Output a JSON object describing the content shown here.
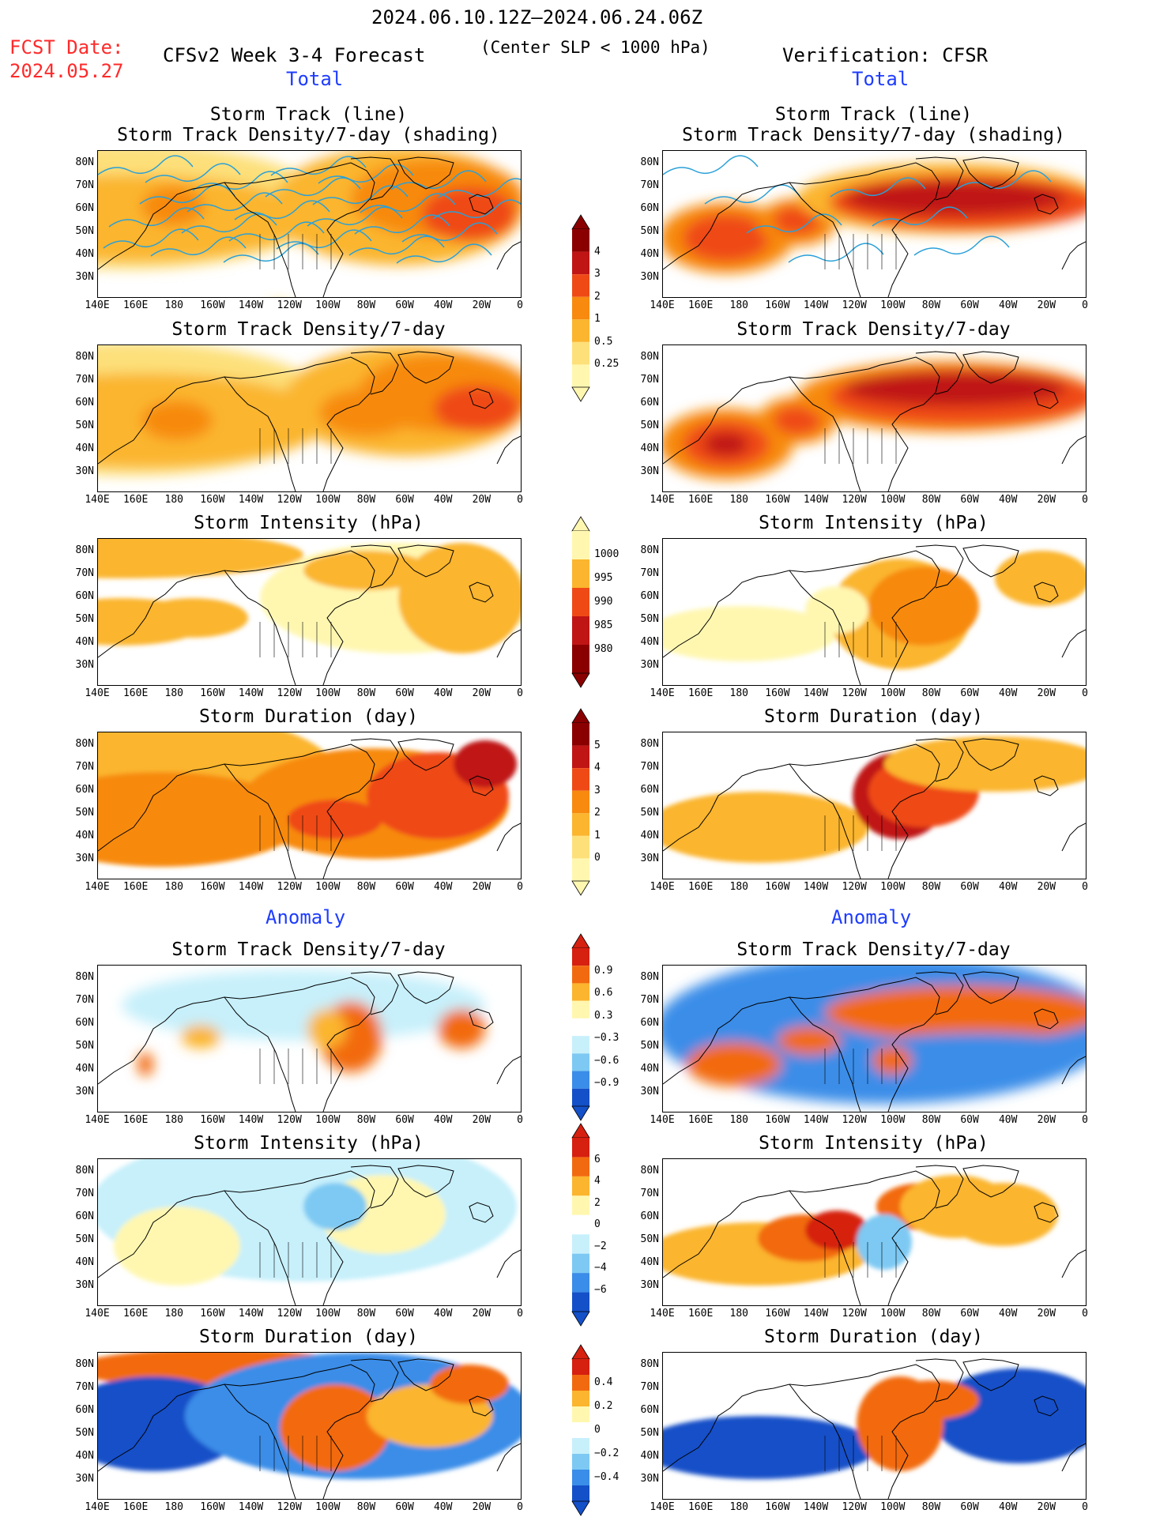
{
  "header": {
    "date_range": "2024.06.10.12Z–2024.06.24.06Z",
    "fcst_date_label": "FCST Date:",
    "fcst_date_value": "2024.05.27",
    "left_title": "CFSv2 Week 3-4 Forecast",
    "center_note": "(Center SLP < 1000 hPa)",
    "right_title": "Verification: CFSR"
  },
  "sections": {
    "total": "Total",
    "anomaly": "Anomaly"
  },
  "panel_titles": {
    "track_line_1": "Storm Track (line)",
    "track_line_2": "Storm Track Density/7-day (shading)",
    "density": "Storm Track Density/7-day",
    "intensity": "Storm Intensity (hPa)",
    "duration": "Storm Duration (day)"
  },
  "axes": {
    "lat_ticks": [
      "80N",
      "70N",
      "60N",
      "50N",
      "40N",
      "30N"
    ],
    "lon_ticks": [
      "140E",
      "160E",
      "180",
      "160W",
      "140W",
      "120W",
      "100W",
      "80W",
      "60W",
      "40W",
      "20W",
      "0"
    ]
  },
  "colorbars": {
    "density_total": [
      "4",
      "3",
      "2",
      "1",
      "0.5",
      "0.25"
    ],
    "intensity_total": [
      "1000",
      "995",
      "990",
      "985",
      "980"
    ],
    "duration_total": [
      "5",
      "4",
      "3",
      "2",
      "1",
      "0"
    ],
    "density_anom": [
      "0.9",
      "0.6",
      "0.3",
      "−0.3",
      "−0.6",
      "−0.9"
    ],
    "intensity_anom": [
      "6",
      "4",
      "2",
      "0",
      "−2",
      "−4",
      "−6"
    ],
    "duration_anom": [
      "0.4",
      "0.2",
      "0",
      "−0.2",
      "−0.4"
    ]
  },
  "colors": {
    "seq": [
      "#fff7b0",
      "#fde07a",
      "#fbb52e",
      "#f78a0f",
      "#ef4a16",
      "#c01515",
      "#8a0000"
    ],
    "div_warm": [
      "#fff7b0",
      "#fbb52e",
      "#f26a10",
      "#d62010"
    ],
    "div_cool": [
      "#c7f0fb",
      "#7dc9f3",
      "#3a8de8",
      "#1450c8"
    ],
    "track_line": "#2aa0d8",
    "fcst_red": "#ff2a2a",
    "section_blue": "#1e3cff"
  }
}
